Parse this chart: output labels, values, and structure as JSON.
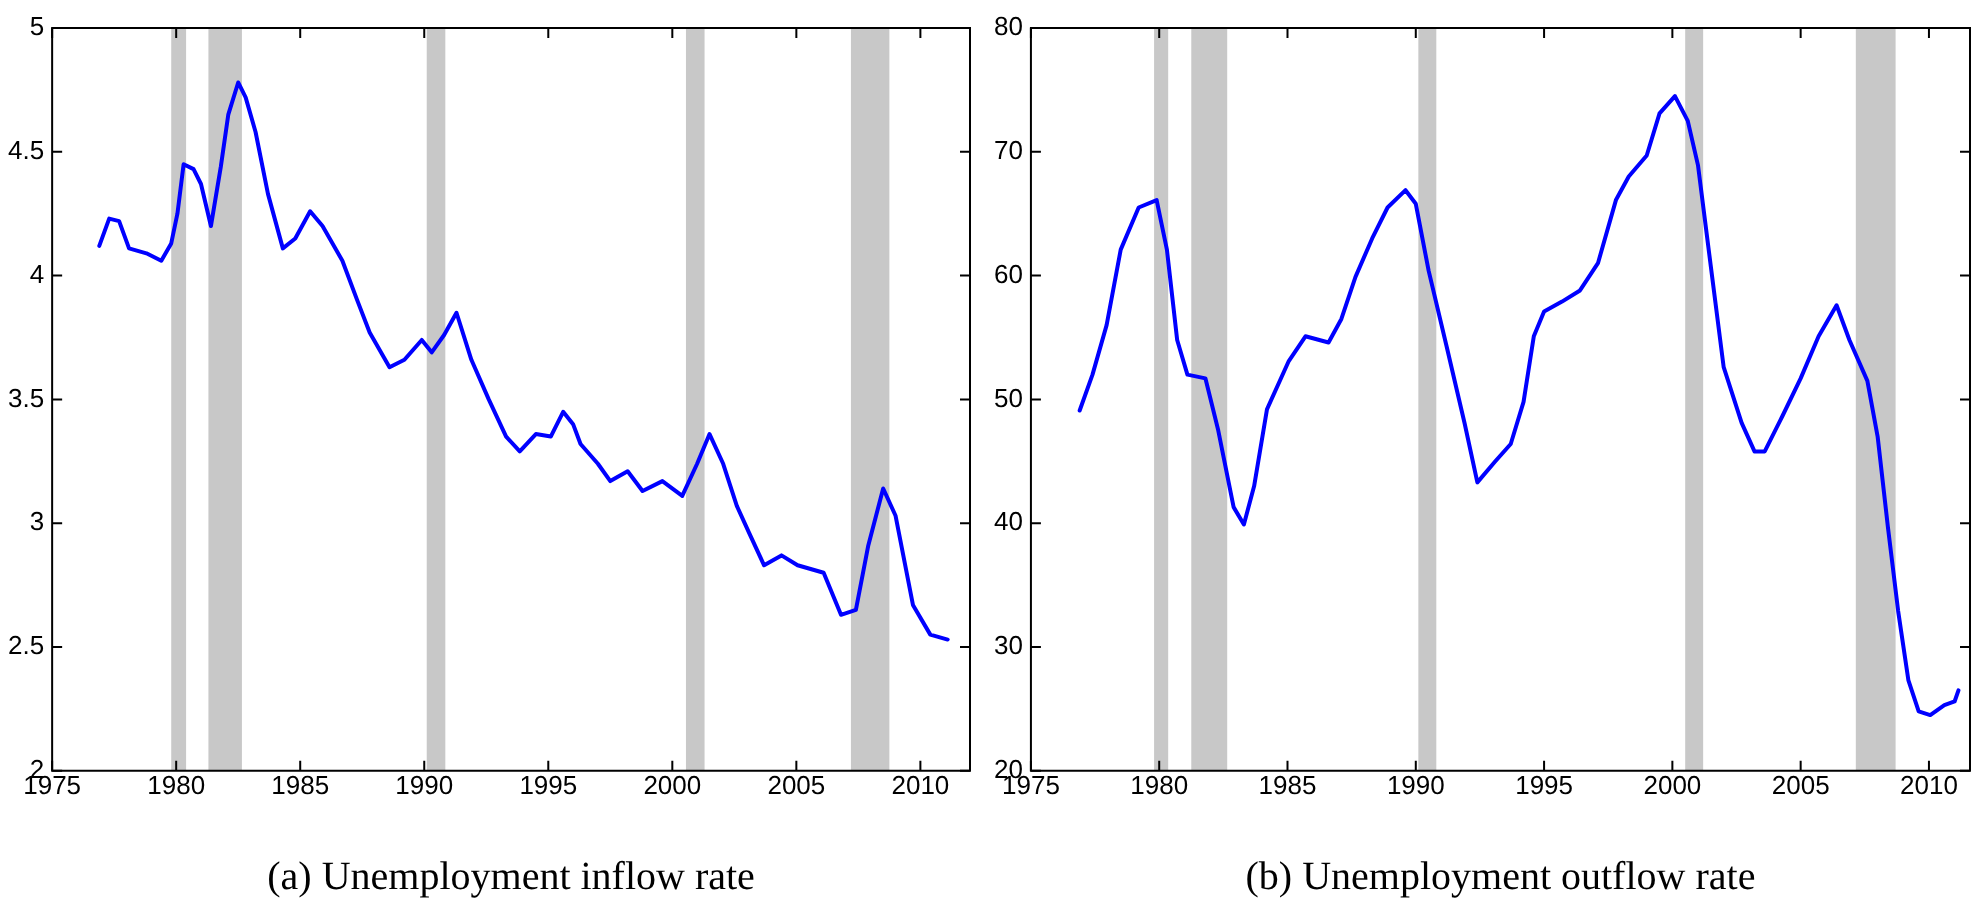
{
  "chart_data": [
    {
      "type": "line",
      "xlabel": "(a) Unemployment inflow rate",
      "xlim": [
        1975,
        2012
      ],
      "xticks": [
        1975,
        1980,
        1985,
        1990,
        1995,
        2000,
        2005,
        2010
      ],
      "ylim": [
        2,
        5
      ],
      "yticks": [
        2,
        2.5,
        3,
        3.5,
        4,
        4.5,
        5
      ],
      "grid": false,
      "legend": false,
      "marker": "none",
      "line_style": "solid",
      "x": [
        1976.9,
        1977.3,
        1977.7,
        1978.1,
        1978.8,
        1979.4,
        1979.8,
        1980.05,
        1980.3,
        1980.7,
        1981.0,
        1981.4,
        1981.8,
        1982.1,
        1982.5,
        1982.8,
        1983.2,
        1983.7,
        1984.3,
        1984.8,
        1985.4,
        1985.9,
        1986.7,
        1987.3,
        1987.8,
        1988.6,
        1989.2,
        1989.9,
        1990.3,
        1990.8,
        1991.3,
        1991.9,
        1992.6,
        1993.3,
        1993.85,
        1994.5,
        1995.1,
        1995.6,
        1996.0,
        1996.3,
        1997.0,
        1997.5,
        1998.2,
        1998.8,
        1999.6,
        2000.4,
        2001.0,
        2001.5,
        2002.05,
        2002.6,
        2003.1,
        2003.7,
        2004.4,
        2005.05,
        2006.1,
        2006.8,
        2007.4,
        2007.9,
        2008.5,
        2009.0,
        2009.7,
        2010.4,
        2011.1
      ],
      "series": [
        {
          "color": "#0000ff",
          "values": [
            4.12,
            4.23,
            4.22,
            4.11,
            4.09,
            4.06,
            4.13,
            4.25,
            4.45,
            4.43,
            4.37,
            4.2,
            4.44,
            4.65,
            4.78,
            4.72,
            4.58,
            4.33,
            4.11,
            4.15,
            4.26,
            4.2,
            4.06,
            3.9,
            3.77,
            3.63,
            3.66,
            3.74,
            3.69,
            3.76,
            3.85,
            3.66,
            3.5,
            3.35,
            3.29,
            3.36,
            3.35,
            3.45,
            3.4,
            3.32,
            3.24,
            3.17,
            3.21,
            3.13,
            3.17,
            3.11,
            3.24,
            3.36,
            3.24,
            3.07,
            2.96,
            2.83,
            2.87,
            2.83,
            2.8,
            2.63,
            2.65,
            2.91,
            3.14,
            3.03,
            2.67,
            2.55,
            2.53
          ]
        }
      ],
      "bands": [
        {
          "axis": "x",
          "from": 1979.8,
          "to": 1980.4,
          "color": "#c8c8c8"
        },
        {
          "axis": "x",
          "from": 1981.3,
          "to": 1982.65,
          "color": "#c8c8c8"
        },
        {
          "axis": "x",
          "from": 1990.1,
          "to": 1990.85,
          "color": "#c8c8c8"
        },
        {
          "axis": "x",
          "from": 2000.55,
          "to": 2001.3,
          "color": "#c8c8c8"
        },
        {
          "axis": "x",
          "from": 2007.2,
          "to": 2008.75,
          "color": "#c8c8c8"
        }
      ]
    },
    {
      "type": "line",
      "xlabel": "(b) Unemployment outflow rate",
      "xlim": [
        1975,
        2011.6
      ],
      "xticks": [
        1975,
        1980,
        1985,
        1990,
        1995,
        2000,
        2005,
        2010
      ],
      "ylim": [
        20,
        80
      ],
      "yticks": [
        20,
        30,
        40,
        50,
        60,
        70,
        80
      ],
      "grid": false,
      "legend": false,
      "marker": "none",
      "line_style": "solid",
      "x": [
        1976.9,
        1977.4,
        1977.95,
        1978.5,
        1979.2,
        1979.9,
        1980.3,
        1980.7,
        1981.1,
        1981.8,
        1982.3,
        1982.9,
        1983.3,
        1983.7,
        1984.2,
        1985.05,
        1985.7,
        1986.6,
        1987.1,
        1987.65,
        1988.3,
        1988.9,
        1989.6,
        1990.0,
        1990.5,
        1991.2,
        1991.9,
        1992.4,
        1993.1,
        1993.7,
        1994.2,
        1994.6,
        1995.0,
        1995.7,
        1996.4,
        1997.1,
        1997.8,
        1998.3,
        1999.0,
        1999.5,
        2000.1,
        2000.6,
        2001.0,
        2001.55,
        2002.0,
        2002.7,
        2003.2,
        2003.6,
        2004.3,
        2005.0,
        2005.7,
        2006.4,
        2006.9,
        2007.6,
        2008.0,
        2008.4,
        2008.8,
        2009.2,
        2009.6,
        2010.05,
        2010.6,
        2011.0,
        2011.15
      ],
      "series": [
        {
          "color": "#0000ff",
          "values": [
            49.1,
            52.0,
            56.0,
            62.1,
            65.5,
            66.1,
            62.1,
            54.8,
            52.0,
            51.7,
            47.5,
            41.3,
            39.9,
            43.0,
            49.2,
            53.1,
            55.1,
            54.6,
            56.5,
            59.9,
            63.0,
            65.5,
            66.9,
            65.8,
            60.4,
            54.3,
            48.1,
            43.3,
            45.0,
            46.4,
            49.8,
            55.1,
            57.1,
            57.9,
            58.8,
            61.0,
            66.1,
            68.0,
            69.7,
            73.1,
            74.5,
            72.5,
            68.9,
            59.9,
            52.6,
            48.1,
            45.8,
            45.8,
            48.7,
            51.7,
            55.1,
            57.6,
            54.8,
            51.5,
            47.0,
            39.7,
            32.9,
            27.3,
            24.8,
            24.5,
            25.3,
            25.6,
            26.5
          ]
        }
      ],
      "bands": [
        {
          "axis": "x",
          "from": 1979.8,
          "to": 1980.35,
          "color": "#c8c8c8"
        },
        {
          "axis": "x",
          "from": 1981.25,
          "to": 1982.65,
          "color": "#c8c8c8"
        },
        {
          "axis": "x",
          "from": 1990.1,
          "to": 1990.8,
          "color": "#c8c8c8"
        },
        {
          "axis": "x",
          "from": 2000.5,
          "to": 2001.2,
          "color": "#c8c8c8"
        },
        {
          "axis": "x",
          "from": 2007.15,
          "to": 2008.7,
          "color": "#c8c8c8"
        }
      ]
    }
  ]
}
